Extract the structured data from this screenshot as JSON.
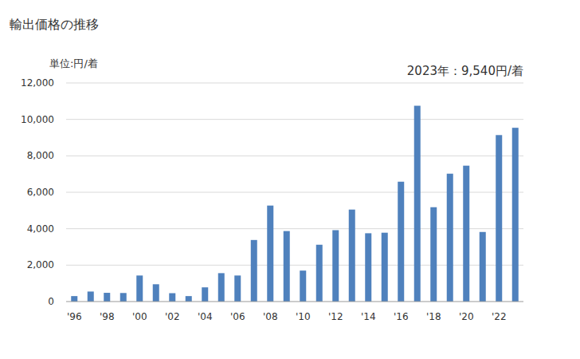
{
  "chart_data": {
    "type": "bar",
    "title": "輸出価格の推移",
    "subtitle": "単位:円/着",
    "annotation": "2023年：9,540円/着",
    "categories": [
      "'96",
      null,
      "'98",
      null,
      "'00",
      null,
      "'02",
      null,
      "'04",
      null,
      "'06",
      null,
      "'08",
      null,
      "'10",
      null,
      "'12",
      null,
      "'14",
      null,
      "'16",
      null,
      "'18",
      null,
      "'20",
      null,
      "'22",
      null
    ],
    "values": [
      300,
      550,
      480,
      470,
      1430,
      950,
      460,
      300,
      780,
      1560,
      1430,
      3380,
      5270,
      3870,
      1700,
      3120,
      3920,
      5050,
      3750,
      3780,
      6580,
      10750,
      5180,
      7020,
      7460,
      3820,
      9140,
      9540
    ],
    "color": "#4f81bd",
    "ylim": [
      0,
      12000
    ],
    "yticks": [
      0,
      {
        "value": 2000,
        "label": "2,000"
      },
      {
        "value": 4000,
        "label": "4,000"
      },
      {
        "value": 6000,
        "label": "6,000"
      },
      {
        "value": 8000,
        "label": "8,000"
      },
      {
        "value": 10000,
        "label": "10,000"
      },
      {
        "value": 12000,
        "label": "12,000"
      }
    ],
    "grid": true
  }
}
